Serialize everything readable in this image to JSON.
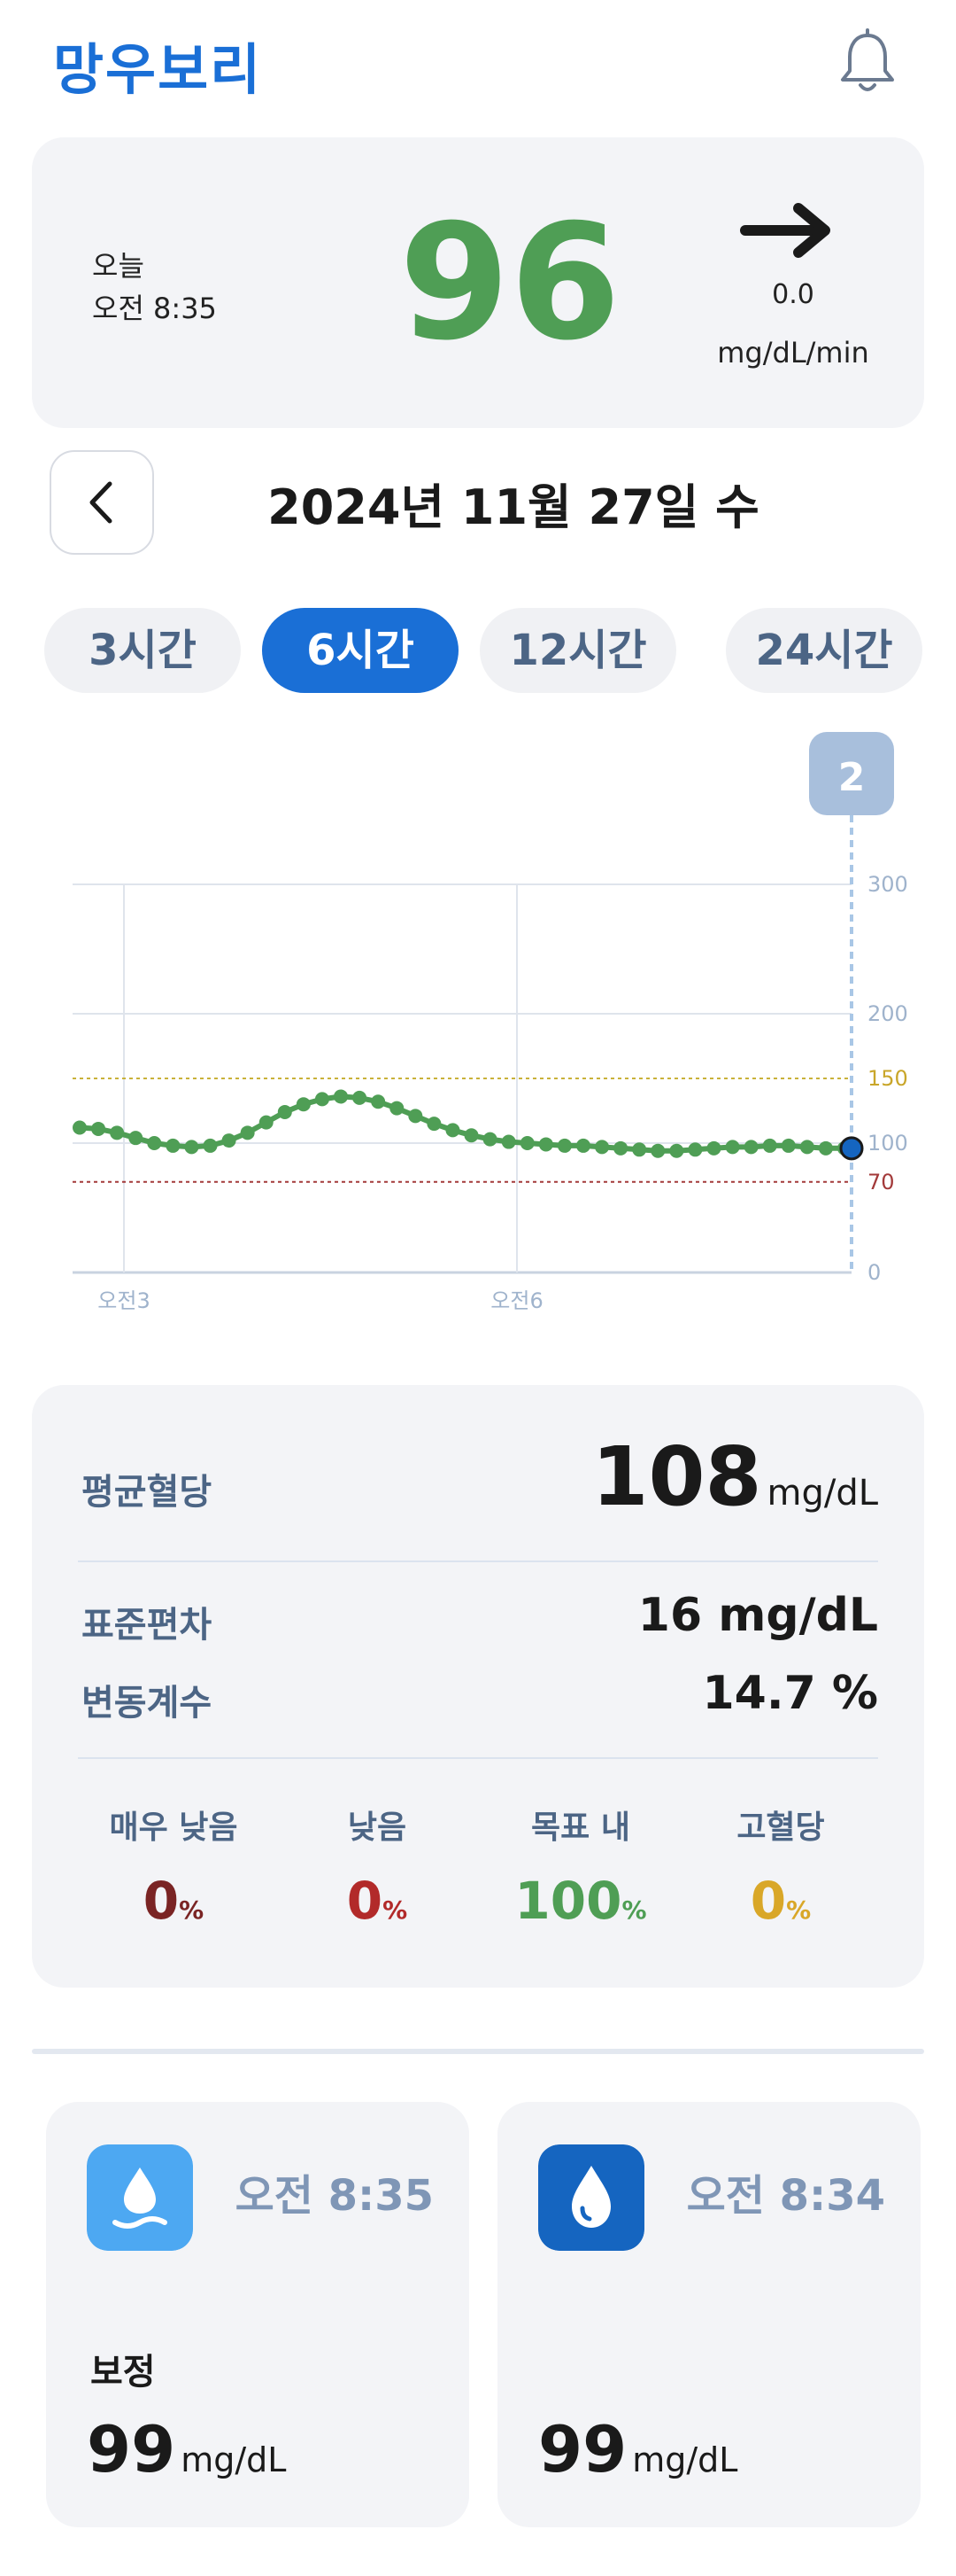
{
  "header": {
    "title": "망우보리",
    "bell_icon": "bell-icon"
  },
  "reading": {
    "day": "오늘",
    "time": "오전 8:35",
    "value": "96",
    "trend_icon": "arrow-right-icon",
    "rate": "0.0",
    "rate_unit": "mg/dL/min"
  },
  "date_nav": {
    "back_icon": "chevron-left-icon",
    "date": "2024년 11월 27일 수"
  },
  "tabs": [
    {
      "label": "3시간"
    },
    {
      "label": "6시간",
      "active": true
    },
    {
      "label": "12시간"
    },
    {
      "label": "24시간"
    }
  ],
  "chart_data": {
    "type": "line",
    "marker_badge": "2",
    "y_ticks": [
      "300",
      "200",
      "150",
      "100",
      "70",
      "0"
    ],
    "ylim": [
      0,
      300
    ],
    "x_ticks": [
      "오전3",
      "오전6"
    ],
    "thresholds": [
      {
        "value": 150,
        "color": "#c9b23a"
      },
      {
        "value": 70,
        "color": "#a33a3a"
      }
    ],
    "series": [
      {
        "color": "#4f9e55",
        "values": [
          112,
          111,
          108,
          104,
          100,
          98,
          97,
          98,
          102,
          108,
          116,
          124,
          130,
          134,
          136,
          135,
          132,
          127,
          121,
          115,
          110,
          106,
          103,
          101,
          100,
          99,
          98,
          98,
          97,
          96,
          95,
          94,
          94,
          95,
          96,
          97,
          97,
          98,
          98,
          97,
          96,
          96
        ]
      }
    ],
    "current_value": 96
  },
  "stats": {
    "avg_label": "평균혈당",
    "avg_value": "108",
    "avg_unit": "mg/dL",
    "sd_label": "표준편차",
    "sd_value": "16 mg/dL",
    "cv_label": "변동계수",
    "cv_value": "14.7 %",
    "ranges": [
      {
        "label": "매우 낮음",
        "value": "0",
        "color": "#7a2424"
      },
      {
        "label": "낮음",
        "value": "0",
        "color": "#b22a2a"
      },
      {
        "label": "목표 내",
        "value": "100",
        "color": "#4f9e55"
      },
      {
        "label": "고혈당",
        "value": "0",
        "color": "#d9a728"
      }
    ],
    "pct": "%"
  },
  "events": [
    {
      "icon": "water-drop-icon",
      "time": "오전 8:35",
      "label": "보정",
      "value": "99",
      "unit": "mg/dL",
      "color": "#4da8f2"
    },
    {
      "icon": "blood-drop-icon",
      "time": "오전 8:34",
      "label": "",
      "value": "99",
      "unit": "mg/dL",
      "color": "#1565c0"
    }
  ]
}
